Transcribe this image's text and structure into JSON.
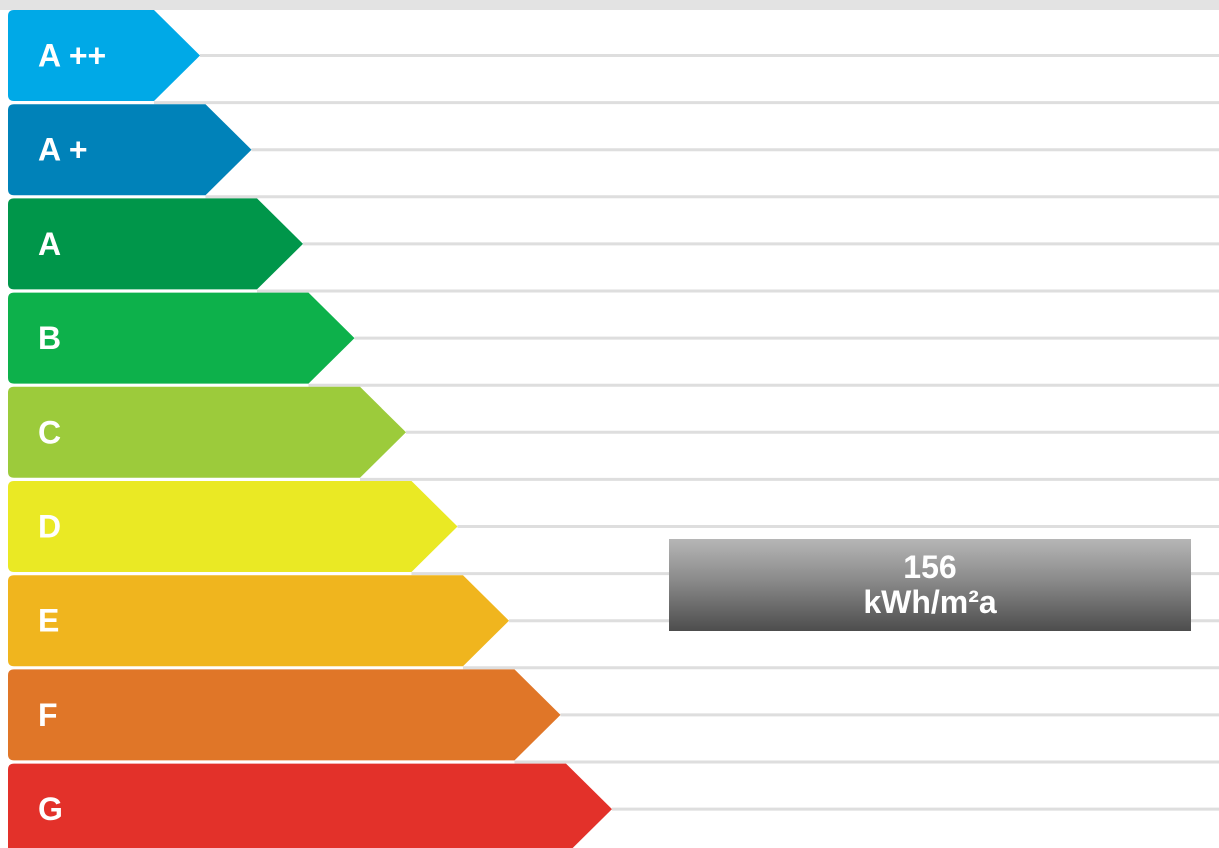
{
  "chart_data": {
    "type": "bar",
    "title": "",
    "categories": [
      "A ++",
      "A +",
      "A",
      "B",
      "C",
      "D",
      "E",
      "F",
      "G"
    ],
    "colors": [
      "#00a9e7",
      "#0082b9",
      "#00964a",
      "#0db14b",
      "#9ccb3b",
      "#eae924",
      "#f0b51e",
      "#e07628",
      "#e3312a"
    ],
    "rating": {
      "value": "156",
      "unit": "kWh/m²a",
      "class": "E"
    }
  }
}
